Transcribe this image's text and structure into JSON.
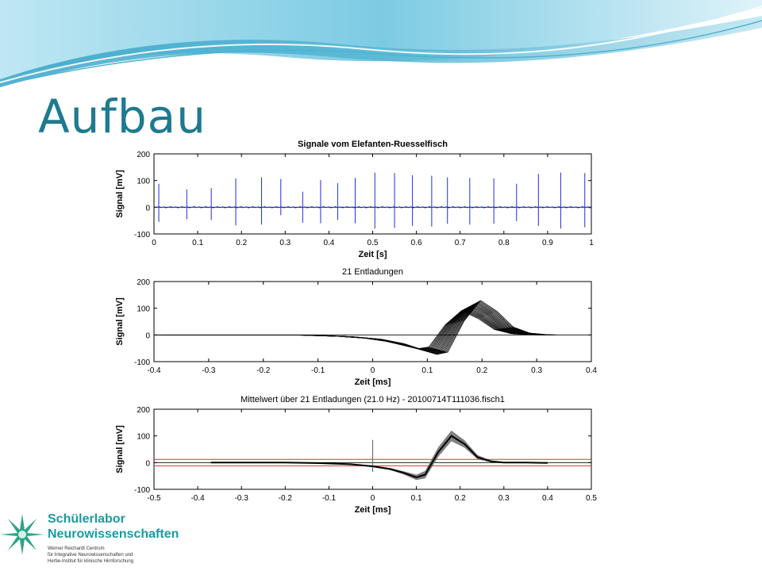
{
  "slide": {
    "title": "Aufbau"
  },
  "logo": {
    "line1": "Schülerlabor",
    "line2": "Neurowissenschaften",
    "line3": "Werner Reichardt Centrum",
    "line4": "für Integrative Neurowissenschaften und",
    "line5": "Hertie-Institut für klinische Hirnforschung"
  },
  "colors": {
    "title": "#1d7a8f",
    "signal": "#1f2fd8",
    "trace": "#000000",
    "band": "#808080",
    "threshold": "#e03030"
  },
  "chart_data": [
    {
      "type": "line",
      "title": "Signale vom Elefanten-Ruesselfisch",
      "xlabel": "Zeit [s]",
      "ylabel": "Signal [mV]",
      "xlim": [
        0,
        1
      ],
      "ylim": [
        -100,
        200
      ],
      "xticks": [
        0,
        0.1,
        0.2,
        0.3,
        0.4,
        0.5,
        0.6,
        0.7,
        0.8,
        0.9,
        1
      ],
      "yticks": [
        -100,
        0,
        100,
        200
      ],
      "grid": false,
      "series": [
        {
          "color": "#1f2fd8",
          "spikes": [
            {
              "x": 0.011,
              "max": 88,
              "min": -55
            },
            {
              "x": 0.075,
              "max": 67,
              "min": -45
            },
            {
              "x": 0.131,
              "max": 72,
              "min": -48
            },
            {
              "x": 0.187,
              "max": 108,
              "min": -68
            },
            {
              "x": 0.246,
              "max": 112,
              "min": -65
            },
            {
              "x": 0.29,
              "max": 106,
              "min": -30
            },
            {
              "x": 0.34,
              "max": 58,
              "min": -58
            },
            {
              "x": 0.381,
              "max": 102,
              "min": -60
            },
            {
              "x": 0.42,
              "max": 90,
              "min": -48
            },
            {
              "x": 0.46,
              "max": 110,
              "min": -60
            },
            {
              "x": 0.505,
              "max": 130,
              "min": -80
            },
            {
              "x": 0.55,
              "max": 128,
              "min": -78
            },
            {
              "x": 0.591,
              "max": 120,
              "min": -70
            },
            {
              "x": 0.635,
              "max": 118,
              "min": -72
            },
            {
              "x": 0.671,
              "max": 112,
              "min": -62
            },
            {
              "x": 0.722,
              "max": 110,
              "min": -65
            },
            {
              "x": 0.777,
              "max": 108,
              "min": -62
            },
            {
              "x": 0.829,
              "max": 88,
              "min": -52
            },
            {
              "x": 0.879,
              "max": 125,
              "min": -70
            },
            {
              "x": 0.93,
              "max": 130,
              "min": -80
            },
            {
              "x": 0.985,
              "max": 128,
              "min": -75
            }
          ]
        }
      ]
    },
    {
      "type": "line",
      "title": "21 Entladungen",
      "xlabel": "Zeit [ms]",
      "ylabel": "Signal [mV]",
      "xlim": [
        -0.4,
        0.4
      ],
      "ylim": [
        -100,
        200
      ],
      "xticks": [
        -0.4,
        -0.3,
        -0.2,
        -0.1,
        0,
        0.1,
        0.2,
        0.3,
        0.4
      ],
      "yticks": [
        -100,
        0,
        100,
        200
      ],
      "grid": false,
      "overlay_count": 21,
      "series": [
        {
          "name_visible": false,
          "x": [
            -0.38,
            -0.3,
            -0.2,
            -0.12,
            -0.05,
            0,
            0.04,
            0.07,
            0.1,
            0.12,
            0.15,
            0.18,
            0.21,
            0.24,
            0.27,
            0.3,
            0.32
          ],
          "y": [
            0,
            0,
            0,
            -1,
            -6,
            -14,
            -28,
            -45,
            -62,
            -55,
            45,
            110,
            75,
            25,
            6,
            1,
            0
          ]
        }
      ]
    },
    {
      "type": "line",
      "title": "Mittelwert über 21 Entladungen (21.0 Hz) - 20100714T111036.fisch1",
      "xlabel": "Zeit [ms]",
      "ylabel": "Signal [mV]",
      "xlim": [
        -0.5,
        0.5
      ],
      "ylim": [
        -100,
        200
      ],
      "xticks": [
        -0.5,
        -0.4,
        -0.3,
        -0.2,
        -0.1,
        0,
        0.1,
        0.2,
        0.3,
        0.4,
        0.5
      ],
      "yticks": [
        -100,
        0,
        100,
        200
      ],
      "grid": false,
      "thresholds": [
        12,
        -12
      ],
      "marker_x": 0,
      "marker_range": [
        -35,
        85
      ],
      "series": [
        {
          "x": [
            -0.37,
            -0.3,
            -0.2,
            -0.12,
            -0.05,
            0,
            0.04,
            0.07,
            0.1,
            0.12,
            0.15,
            0.18,
            0.21,
            0.24,
            0.27,
            0.3,
            0.35,
            0.4
          ],
          "y": [
            0,
            0,
            0,
            -2,
            -6,
            -14,
            -24,
            -38,
            -55,
            -45,
            40,
            100,
            70,
            20,
            5,
            0,
            0,
            -1
          ],
          "band": [
            1,
            1,
            1,
            1,
            2,
            3,
            4,
            6,
            10,
            14,
            18,
            20,
            14,
            8,
            3,
            1,
            1,
            1
          ]
        }
      ]
    }
  ]
}
